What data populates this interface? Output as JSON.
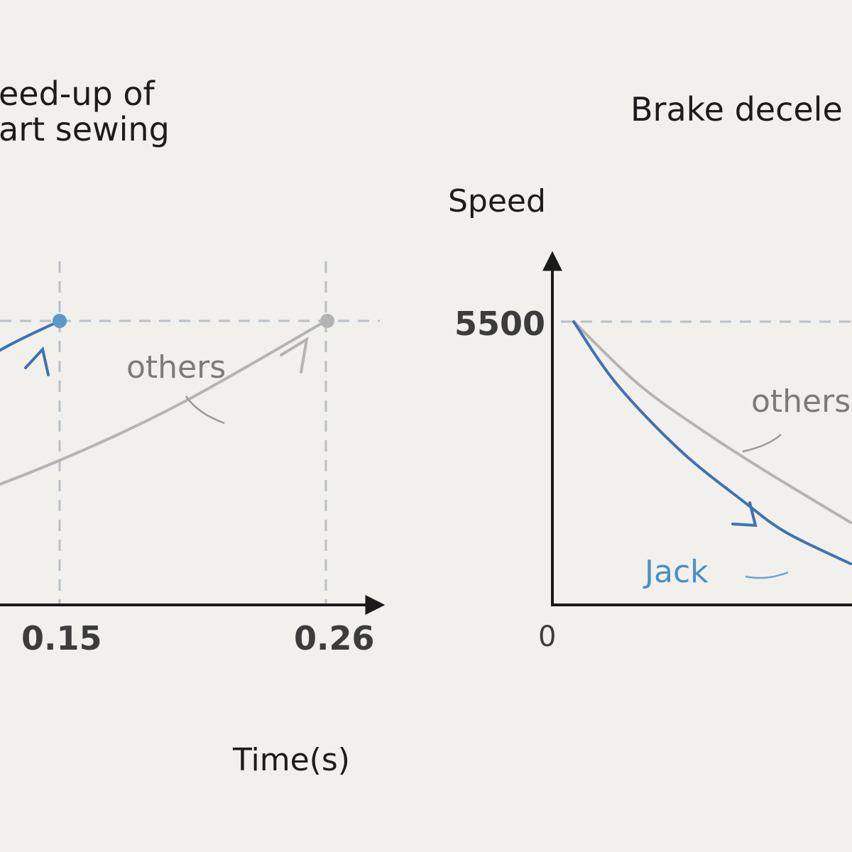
{
  "chart_data": [
    {
      "type": "line",
      "title_lines": [
        "eed-up of",
        "art sewing"
      ],
      "xlabel": "Time(s)",
      "ylabel": "",
      "x_ticks": [
        "0.15",
        "0.26"
      ],
      "ymax": 5500,
      "xlim": [
        0,
        0.3
      ],
      "series": [
        {
          "name": "others",
          "color": "#b4b4b4",
          "x": [
            0,
            0.05,
            0.1,
            0.15,
            0.2,
            0.26
          ],
          "y": [
            300,
            1100,
            1900,
            2800,
            3900,
            5500
          ]
        },
        {
          "name": "",
          "color": "#3f73b0",
          "x": [
            0.09,
            0.11,
            0.13,
            0.15
          ],
          "y": [
            3800,
            4500,
            5050,
            5500
          ]
        }
      ],
      "annotations": [
        "others"
      ]
    },
    {
      "type": "line",
      "title_lines": [
        "Brake decele"
      ],
      "ylabel": "Speed",
      "y_ticks": [
        "5500"
      ],
      "x_ticks": [
        "0"
      ],
      "ymax": 5500,
      "xlim": [
        0,
        1
      ],
      "series": [
        {
          "name": "Jack",
          "color": "#3f73b0",
          "x": [
            0.05,
            0.15,
            0.3,
            0.45,
            0.55,
            0.7
          ],
          "y": [
            5500,
            4300,
            3000,
            2000,
            1400,
            800
          ]
        },
        {
          "name": "others",
          "color": "#b4b4b4",
          "x": [
            0.05,
            0.2,
            0.35,
            0.5,
            0.7
          ],
          "y": [
            5500,
            4300,
            3400,
            2600,
            1600
          ]
        }
      ],
      "annotations": [
        "others",
        "Jack"
      ]
    }
  ]
}
